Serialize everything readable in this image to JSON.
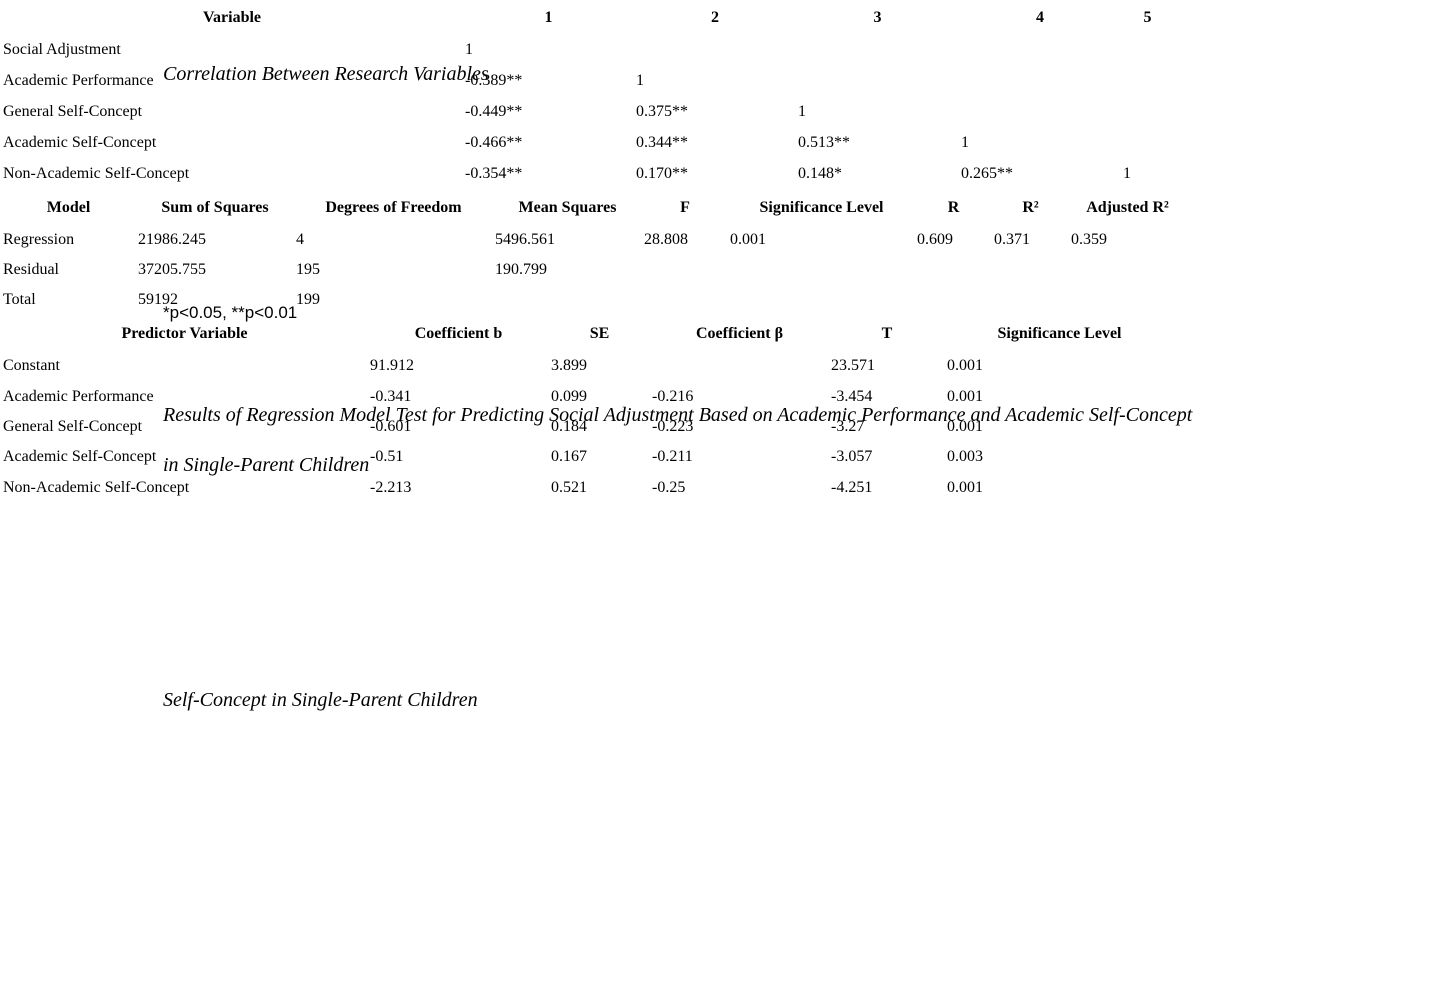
{
  "page": {
    "background_color": "#ffffff",
    "text_color": "#000000"
  },
  "table1": {
    "title": "Correlation Between Research Variables",
    "columns": [
      "Variable",
      "1",
      "2",
      "3",
      "4",
      "5"
    ],
    "rows": [
      [
        "Social Adjustment",
        "1",
        "",
        "",
        "",
        ""
      ],
      [
        "Academic Performance",
        "-0.389**",
        "1",
        "",
        "",
        ""
      ],
      [
        "General Self-Concept",
        "-0.449**",
        "0.375**",
        "1",
        "",
        ""
      ],
      [
        "Academic Self-Concept",
        "-0.466**",
        "0.344**",
        "0.513**",
        "1",
        ""
      ],
      [
        "Non-Academic Self-Concept",
        "-0.354**",
        "0.170**",
        "0.148*",
        "0.265**",
        "1"
      ]
    ],
    "note": "*p<0.05, **p<0.01"
  },
  "table2": {
    "title_lines": [
      "Results of Regression Model Test for Predicting Social Adjustment Based on Academic Performance and Academic Self-Concept",
      "in Single-Parent Children"
    ],
    "columns": [
      "Model",
      "Sum of Squares",
      "Degrees of Freedom",
      "Mean Squares",
      "F",
      "Significance Level",
      "R",
      "R²",
      "Adjusted R²"
    ],
    "rows": [
      [
        "Regression",
        "21986.245",
        "4",
        "5496.561",
        "28.808",
        "0.001",
        "0.609",
        "0.371",
        "0.359"
      ],
      [
        "Residual",
        "37205.755",
        "195",
        "190.799",
        "",
        "",
        "",
        "",
        ""
      ],
      [
        "Total",
        "59192",
        "199",
        "",
        "",
        "",
        "",
        "",
        ""
      ]
    ]
  },
  "table3": {
    "title": "Self-Concept in Single-Parent Children",
    "columns": [
      "Predictor Variable",
      "Coefficient b",
      "SE",
      "Coefficient β",
      "T",
      "Significance Level"
    ],
    "rows": [
      [
        "Constant",
        "91.912",
        "3.899",
        "",
        "23.571",
        "0.001"
      ],
      [
        "Academic Performance",
        "-0.341",
        "0.099",
        "-0.216",
        "-3.454",
        "0.001"
      ],
      [
        "General Self-Concept",
        "-0.601",
        "0.184",
        "-0.223",
        "-3.27",
        "0.001"
      ],
      [
        "Academic Self-Concept",
        "-0.51",
        "0.167",
        "-0.211",
        "-3.057",
        "0.003"
      ],
      [
        "Non-Academic Self-Concept",
        "-2.213",
        "0.521",
        "-0.25",
        "-4.251",
        "0.001"
      ]
    ]
  }
}
